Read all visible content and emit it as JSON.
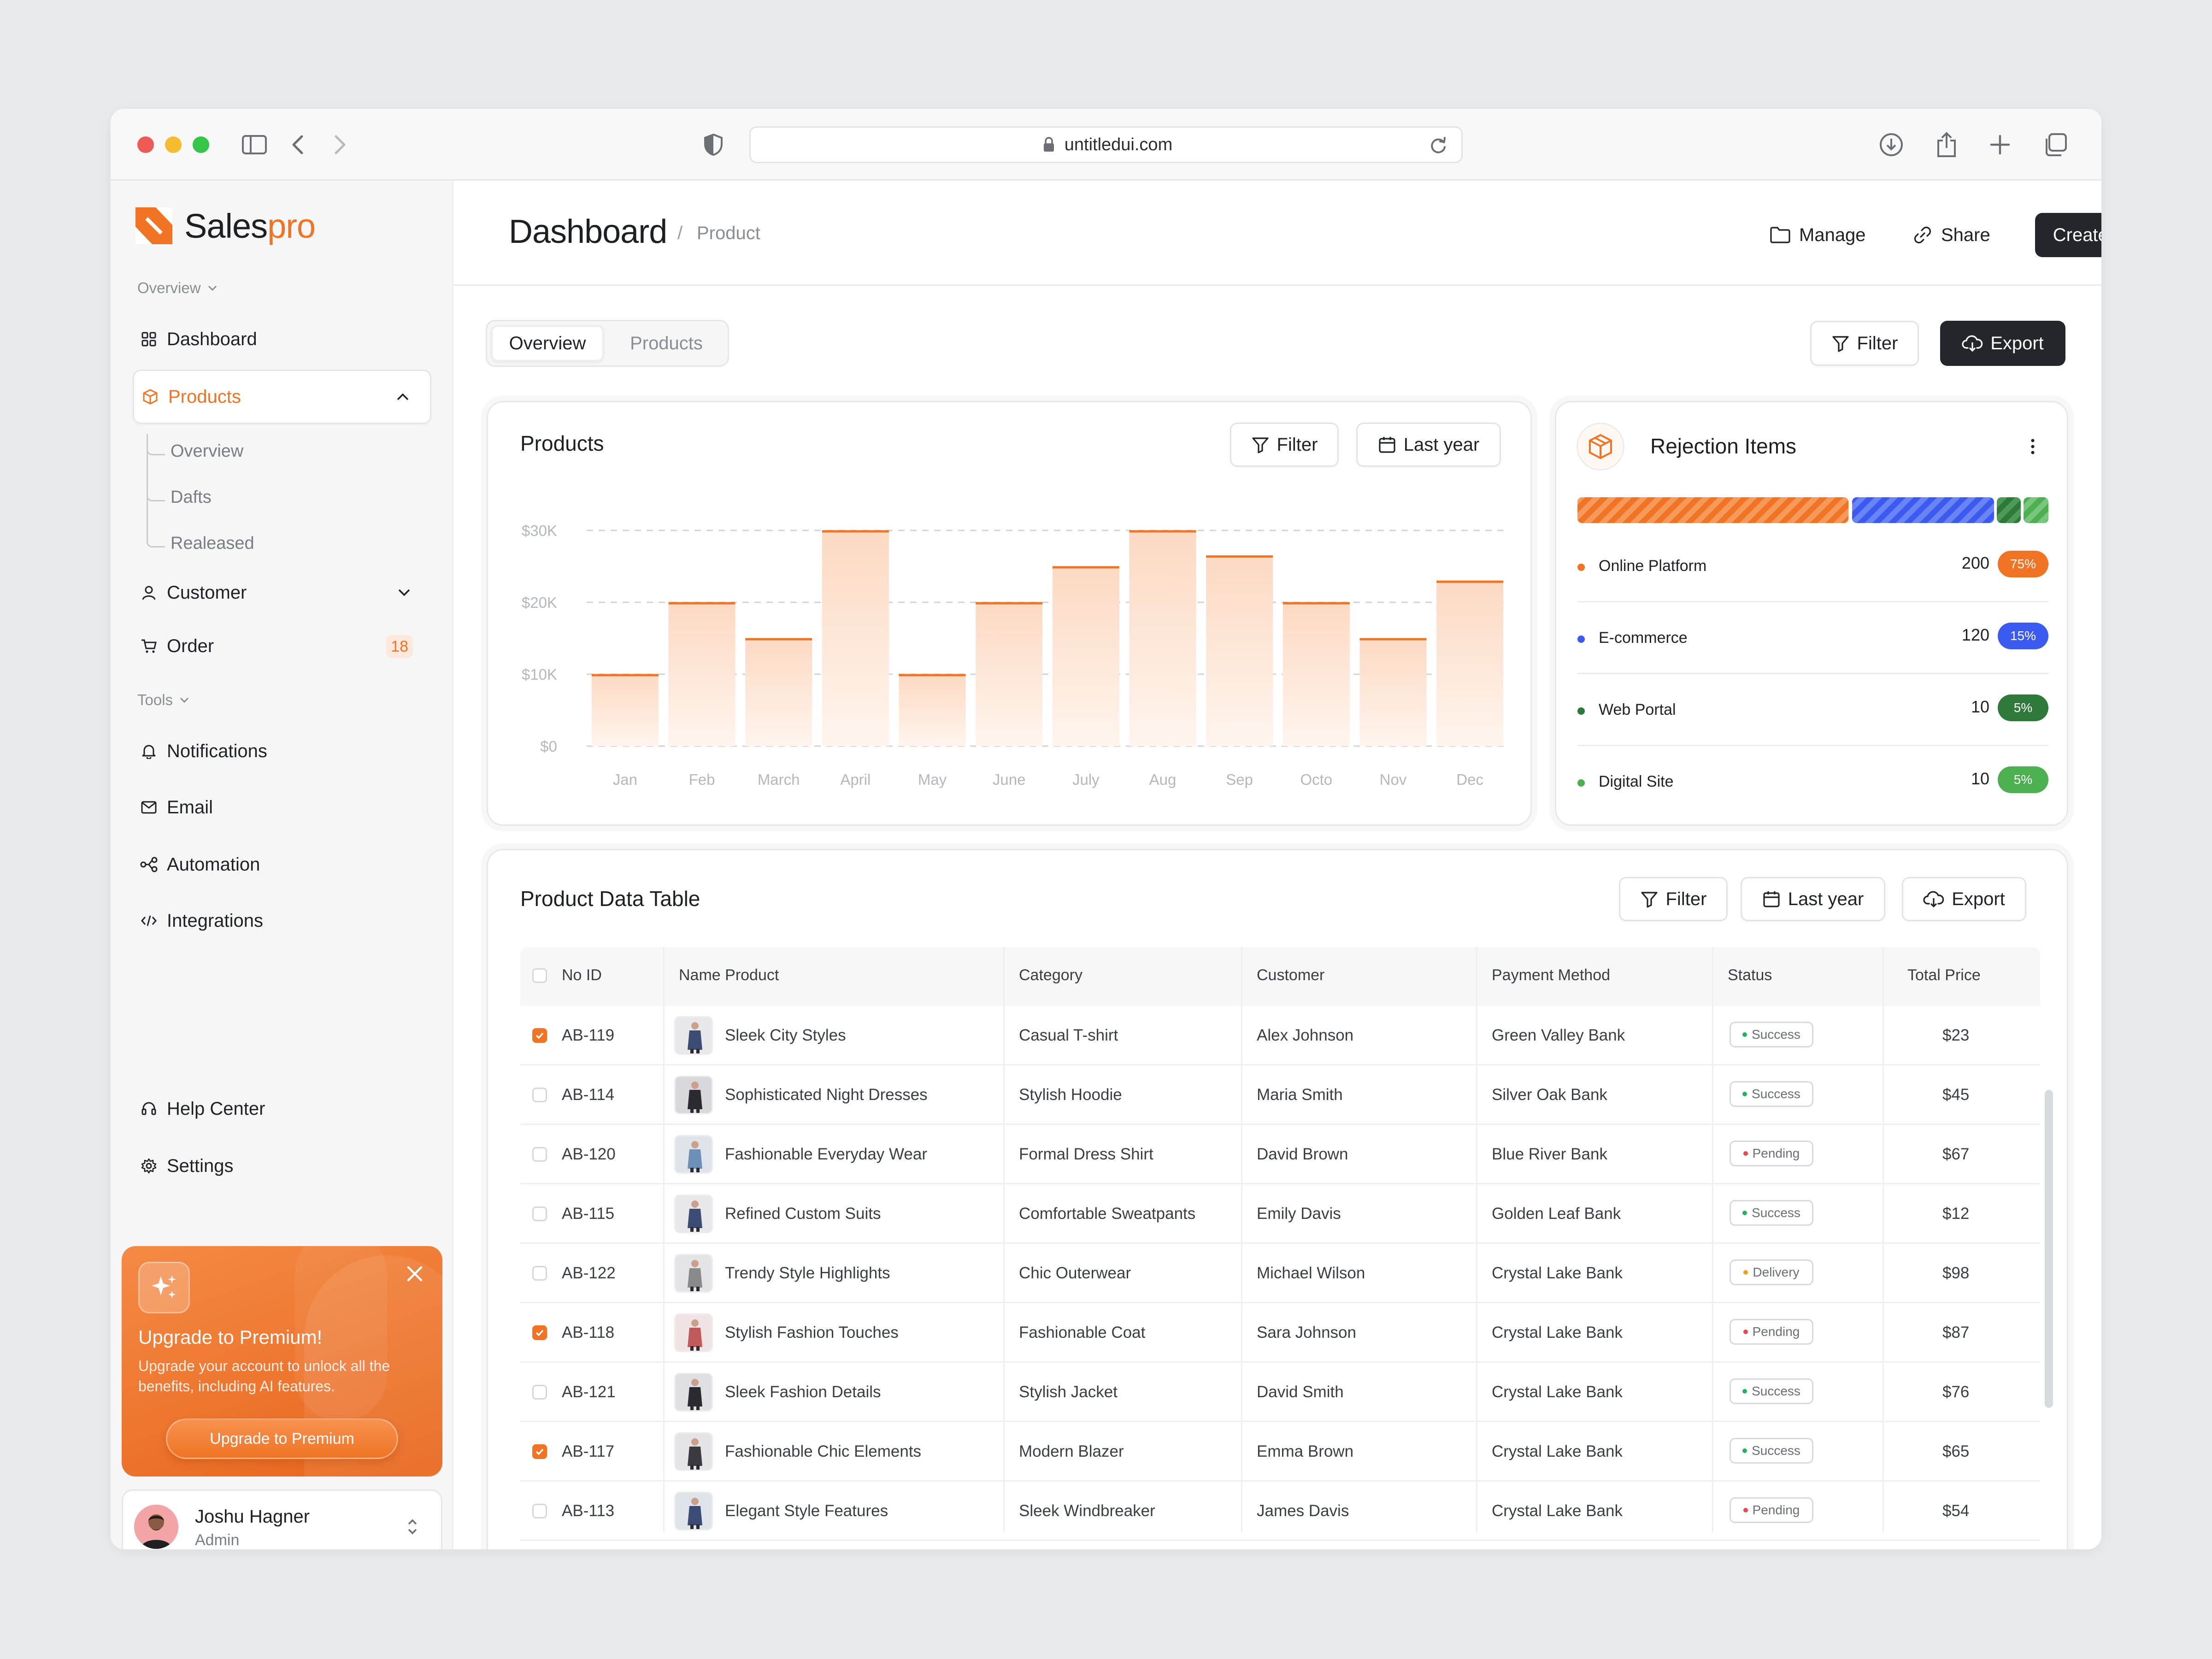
{
  "browser": {
    "url": "untitledui.com",
    "traffic": [
      "#ee5a55",
      "#f5bc2f",
      "#34c549"
    ]
  },
  "brand": {
    "name_a": "Sales",
    "name_b": "pro",
    "accent": "#f07423"
  },
  "sidebar": {
    "overview_label": "Overview",
    "dashboard": "Dashboard",
    "products": "Products",
    "sub": [
      "Overview",
      "Dafts",
      "Realeased"
    ],
    "customer": "Customer",
    "order": "Order",
    "order_badge": "18",
    "tools_label": "Tools",
    "notifications": "Notifications",
    "email": "Email",
    "automation": "Automation",
    "integrations": "Integrations",
    "help": "Help Center",
    "settings": "Settings"
  },
  "promo": {
    "title": "Upgrade to Premium!",
    "desc": "Upgrade your account to unlock all the benefits, including AI features.",
    "cta": "Upgrade to Premium"
  },
  "user": {
    "name": "Joshu Hagner",
    "role": "Admin"
  },
  "header": {
    "title": "Dashboard",
    "sep": "/",
    "crumb": "Product",
    "manage": "Manage",
    "share": "Share",
    "create": "Create task"
  },
  "tabs": {
    "overview": "Overview",
    "products": "Products"
  },
  "toolbar": {
    "filter": "Filter",
    "export": "Export"
  },
  "products_card": {
    "title": "Products",
    "filter": "Filter",
    "range": "Last year"
  },
  "chart_data": {
    "type": "bar",
    "title": "Products",
    "categories": [
      "Jan",
      "Feb",
      "March",
      "April",
      "May",
      "June",
      "July",
      "Aug",
      "Sep",
      "Octo",
      "Nov",
      "Dec"
    ],
    "values": [
      10000,
      20000,
      15000,
      30000,
      10000,
      20000,
      25000,
      30000,
      26500,
      20000,
      15000,
      23000
    ],
    "yticks": [
      "$0",
      "$10K",
      "$20K",
      "$30K"
    ],
    "ylim": [
      0,
      30000
    ],
    "grid": true,
    "color": "#f07423"
  },
  "rejection": {
    "title": "Rejection Items",
    "items": [
      {
        "label": "Online Platform",
        "value": "200",
        "pct": "75%",
        "color": "#f07423"
      },
      {
        "label": "E-commerce",
        "value": "120",
        "pct": "15%",
        "color": "#3b5bf0"
      },
      {
        "label": "Web Portal",
        "value": "10",
        "pct": "5%",
        "color": "#2f7a3a"
      },
      {
        "label": "Digital Site",
        "value": "10",
        "pct": "5%",
        "color": "#4caf50"
      }
    ]
  },
  "table": {
    "title": "Product Data Table",
    "filter": "Filter",
    "range": "Last year",
    "export": "Export",
    "columns": [
      "No ID",
      "Name Product",
      "Category",
      "Customer",
      "Payment Method",
      "Status",
      "Total Price"
    ],
    "rows": [
      {
        "id": "AB-119",
        "name": "Sleek City Styles",
        "category": "Casual T-shirt",
        "customer": "Alex Johnson",
        "payment": "Green Valley Bank",
        "status": "Success",
        "price": "$23",
        "checked": true
      },
      {
        "id": "AB-114",
        "name": "Sophisticated Night Dresses",
        "category": "Stylish Hoodie",
        "customer": "Maria Smith",
        "payment": "Silver Oak Bank",
        "status": "Success",
        "price": "$45",
        "checked": false
      },
      {
        "id": "AB-120",
        "name": "Fashionable Everyday Wear",
        "category": "Formal Dress Shirt",
        "customer": "David Brown",
        "payment": "Blue River Bank",
        "status": "Pending",
        "price": "$67",
        "checked": false
      },
      {
        "id": "AB-115",
        "name": "Refined Custom Suits",
        "category": "Comfortable Sweatpants",
        "customer": "Emily Davis",
        "payment": "Golden Leaf Bank",
        "status": "Success",
        "price": "$12",
        "checked": false
      },
      {
        "id": "AB-122",
        "name": "Trendy Style Highlights",
        "category": "Chic Outerwear",
        "customer": "Michael Wilson",
        "payment": "Crystal Lake Bank",
        "status": "Delivery",
        "price": "$98",
        "checked": false
      },
      {
        "id": "AB-118",
        "name": "Stylish Fashion Touches",
        "category": "Fashionable Coat",
        "customer": "Sara Johnson",
        "payment": "Crystal Lake Bank",
        "status": "Pending",
        "price": "$87",
        "checked": true
      },
      {
        "id": "AB-121",
        "name": "Sleek Fashion Details",
        "category": "Stylish Jacket",
        "customer": "David Smith",
        "payment": "Crystal Lake Bank",
        "status": "Success",
        "price": "$76",
        "checked": false
      },
      {
        "id": "AB-117",
        "name": "Fashionable Chic Elements",
        "category": "Modern Blazer",
        "customer": "Emma Brown",
        "payment": "Crystal Lake Bank",
        "status": "Success",
        "price": "$65",
        "checked": true
      },
      {
        "id": "AB-113",
        "name": "Elegant Style Features",
        "category": "Sleek Windbreaker",
        "customer": "James Davis",
        "payment": "Crystal Lake Bank",
        "status": "Pending",
        "price": "$54",
        "checked": false
      }
    ],
    "status_colors": {
      "Success": "#22b35e",
      "Pending": "#e5484d",
      "Delivery": "#f0a020"
    }
  }
}
